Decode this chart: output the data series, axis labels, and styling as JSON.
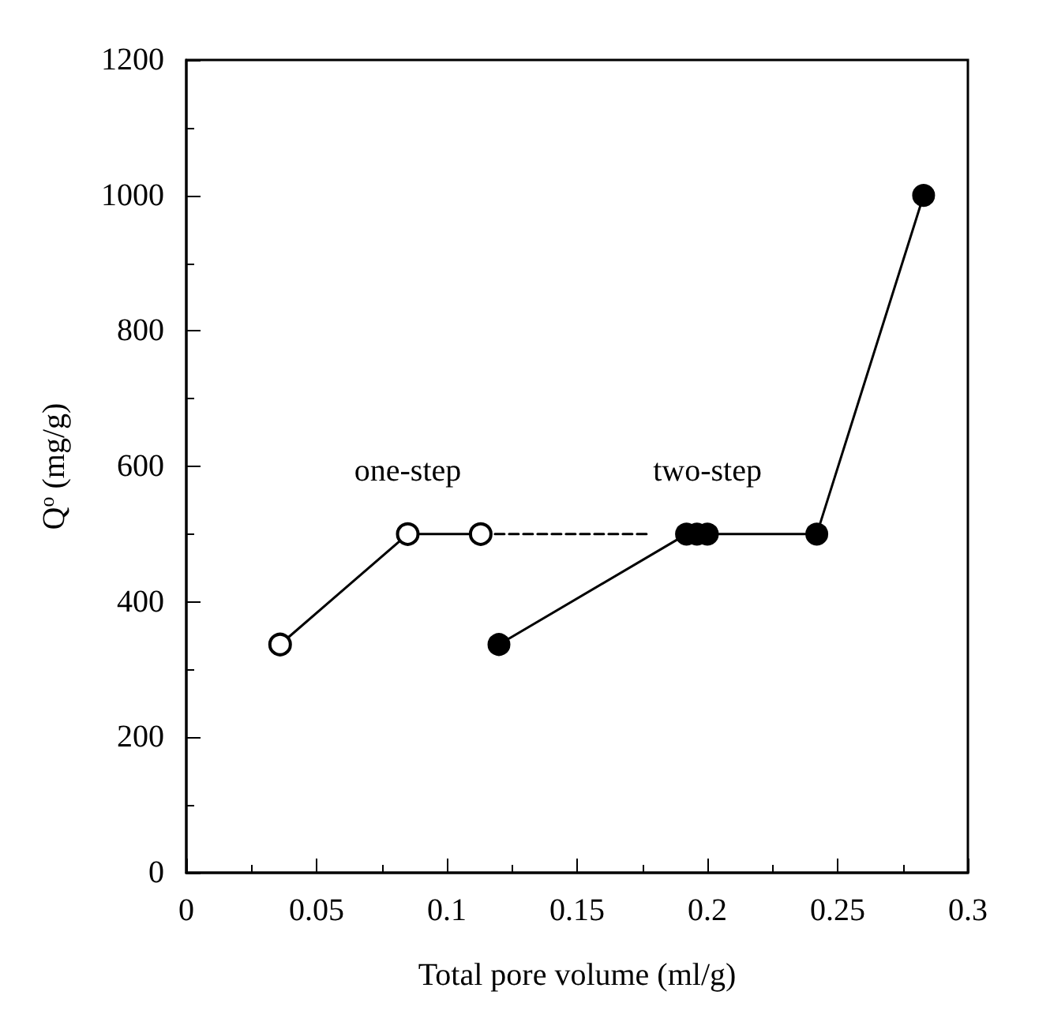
{
  "chart_data": {
    "type": "line",
    "xlabel": "Total pore volume (ml/g)",
    "ylabel": "Q$^{o}$ (mg/g)",
    "xlim": [
      0,
      0.3
    ],
    "xticks": [
      0,
      0.05,
      0.1,
      0.15,
      0.2,
      0.25,
      0.3
    ],
    "ylim": [
      0,
      1200
    ],
    "yticks": [
      0,
      200,
      400,
      600,
      800,
      1000,
      1200
    ],
    "grid": false,
    "legend": false,
    "series": [
      {
        "name": "one-step",
        "color": "#000000",
        "x": [
          0.036,
          0.085,
          0.113
        ],
        "values": [
          337,
          500,
          500
        ],
        "marker": "circle-open",
        "line_style": "solid"
      },
      {
        "color": "#000000",
        "x": [
          0.113,
          0.178
        ],
        "values": [
          500,
          500
        ],
        "marker": "none",
        "line_style": "dashed"
      },
      {
        "name": "two-step",
        "color": "#000000",
        "x": [
          0.12,
          0.192,
          0.196,
          0.2,
          0.242,
          0.283
        ],
        "values": [
          337,
          500,
          500,
          500,
          500,
          1000
        ],
        "marker": "circle",
        "line_style": "solid"
      }
    ]
  }
}
